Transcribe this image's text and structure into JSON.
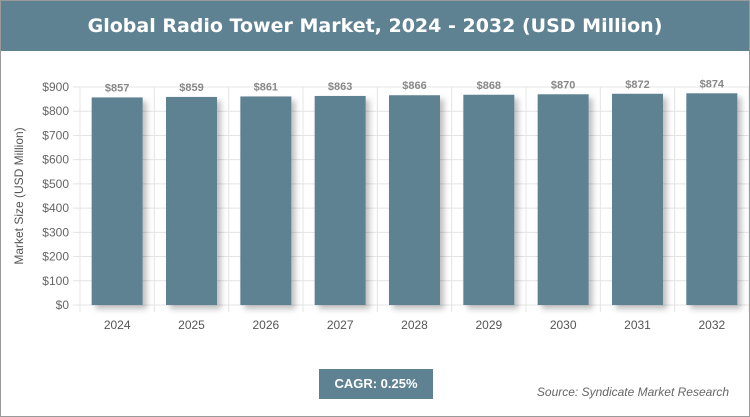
{
  "title": "Global Radio Tower Market, 2024 - 2032 (USD Million)",
  "cagr": "CAGR: 0.25%",
  "source": "Source: Syndicate Market Research",
  "colors": {
    "bar": "#5f8293",
    "header": "#5f8293"
  },
  "chart_data": {
    "type": "bar",
    "title": "Global Radio Tower Market, 2024 - 2032 (USD Million)",
    "ylabel": "Market Size (USD Million)",
    "xlabel": "",
    "categories": [
      "2024",
      "2025",
      "2026",
      "2027",
      "2028",
      "2029",
      "2030",
      "2031",
      "2032"
    ],
    "values": [
      857,
      859,
      861,
      863,
      866,
      868,
      870,
      872,
      874
    ],
    "data_labels": [
      "$857",
      "$859",
      "$861",
      "$863",
      "$866",
      "$868",
      "$870",
      "$872",
      "$874"
    ],
    "ylim": [
      0,
      900
    ],
    "yticks": [
      "$0",
      "$100",
      "$200",
      "$300",
      "$400",
      "$500",
      "$600",
      "$700",
      "$800",
      "$900"
    ],
    "grid": true
  }
}
